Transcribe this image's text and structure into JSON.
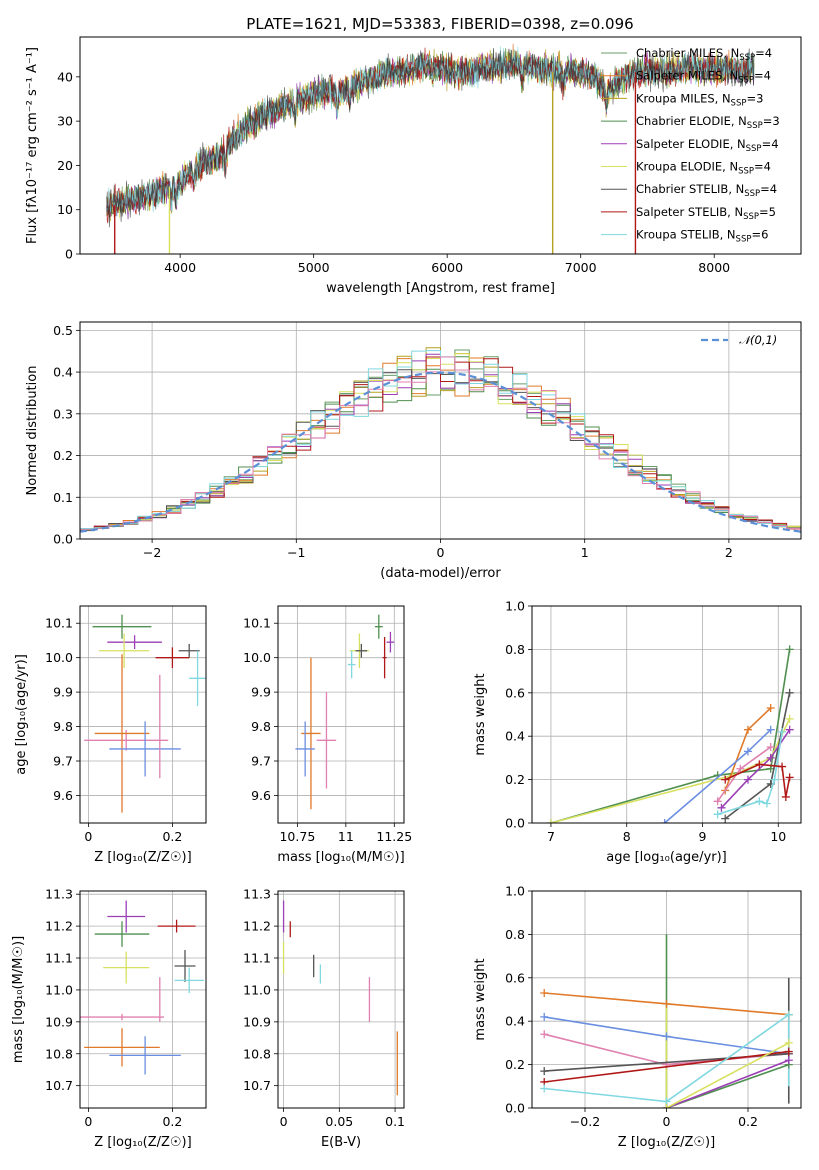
{
  "figure_title": "PLATE=1621, MJD=53383, FIBERID=0398, z=0.096",
  "colors": {
    "Chabrier MILES": "#6a9e6a",
    "Salpeter MILES": "#e07a2a",
    "Kroupa MILES": "#b5a020",
    "Chabrier ELODIE": "#4f8f4f",
    "Salpeter ELODIE": "#9b3fb5",
    "Kroupa ELODIE": "#d8e060",
    "Chabrier STELIB": "#555555",
    "Salpeter STELIB": "#b01818",
    "Kroupa STELIB": "#80d8e0",
    "pink": "#e080b0",
    "blue": "#6a8ee0",
    "orange": "#e07a2a",
    "gaussian": "#5b8fd6"
  },
  "chart_data": [
    {
      "id": "spectrum",
      "type": "line",
      "xlabel": "wavelength [Angstrom, rest frame]",
      "ylabel": "Flux [fλ10⁻¹⁷ erg cm⁻² s⁻¹ A⁻¹]",
      "xlim": [
        3250,
        8650
      ],
      "ylim": [
        0,
        49
      ],
      "xticks": [
        4000,
        5000,
        6000,
        7000,
        8000
      ],
      "yticks": [
        0,
        10,
        20,
        30,
        40
      ],
      "grid": false,
      "legend_position": "top-right",
      "legend": [
        {
          "name": "Chabrier MILES",
          "nssp": "4",
          "color": "#6a9e6a"
        },
        {
          "name": "Salpeter MILES",
          "nssp": "4",
          "color": "#e07a2a"
        },
        {
          "name": "Kroupa MILES",
          "nssp": "3",
          "color": "#b5a020"
        },
        {
          "name": "Chabrier ELODIE",
          "nssp": "3",
          "color": "#4f8f4f"
        },
        {
          "name": "Salpeter ELODIE",
          "nssp": "4",
          "color": "#9b3fb5"
        },
        {
          "name": "Kroupa ELODIE",
          "nssp": "4",
          "color": "#d8e060"
        },
        {
          "name": "Chabrier STELIB",
          "nssp": "4",
          "color": "#555555"
        },
        {
          "name": "Salpeter STELIB",
          "nssp": "5",
          "color": "#b01818"
        },
        {
          "name": "Kroupa STELIB",
          "nssp": "6",
          "color": "#80d8e0"
        }
      ],
      "continuum": [
        [
          3450,
          10.5
        ],
        [
          3600,
          12
        ],
        [
          3750,
          13
        ],
        [
          3900,
          15
        ],
        [
          4000,
          16
        ],
        [
          4100,
          19
        ],
        [
          4200,
          21
        ],
        [
          4300,
          22
        ],
        [
          4400,
          26
        ],
        [
          4500,
          29
        ],
        [
          4600,
          31
        ],
        [
          4700,
          32.5
        ],
        [
          4800,
          33.5
        ],
        [
          4900,
          35
        ],
        [
          5000,
          36
        ],
        [
          5100,
          37
        ],
        [
          5200,
          36.5
        ],
        [
          5300,
          38
        ],
        [
          5400,
          39.5
        ],
        [
          5500,
          40.5
        ],
        [
          5600,
          41
        ],
        [
          5700,
          41.5
        ],
        [
          5800,
          42.5
        ],
        [
          5900,
          43
        ],
        [
          6000,
          41.5
        ],
        [
          6100,
          41
        ],
        [
          6200,
          41.5
        ],
        [
          6300,
          42
        ],
        [
          6400,
          42.5
        ],
        [
          6500,
          43
        ],
        [
          6600,
          42.5
        ],
        [
          6700,
          42
        ],
        [
          6800,
          41
        ],
        [
          6900,
          41.5
        ],
        [
          7000,
          41
        ],
        [
          7100,
          40
        ],
        [
          7200,
          37
        ],
        [
          7300,
          39.5
        ],
        [
          7400,
          41
        ],
        [
          7500,
          41.5
        ],
        [
          7600,
          41
        ],
        [
          7700,
          41.5
        ],
        [
          7800,
          42
        ],
        [
          7900,
          42
        ],
        [
          8000,
          41.5
        ],
        [
          8100,
          41.8
        ],
        [
          8200,
          41.5
        ],
        [
          8300,
          42
        ]
      ],
      "drops": [
        [
          3510,
          0
        ],
        [
          3920,
          0
        ],
        [
          6790,
          0
        ],
        [
          7410,
          0
        ]
      ]
    },
    {
      "id": "residuals",
      "type": "histogram",
      "xlabel": "(data-model)/error",
      "ylabel": "Normed distribution",
      "xlim": [
        -2.5,
        2.5
      ],
      "ylim": [
        0,
        0.52
      ],
      "xticks": [
        -2,
        -1,
        0,
        1,
        2
      ],
      "yticks": [
        0.0,
        0.1,
        0.2,
        0.3,
        0.4,
        0.5
      ],
      "grid": true,
      "legend_label": "𝒩(0,1)",
      "legend_position": "top-right",
      "bin_width": 0.1,
      "bin_start": -2.5
    },
    {
      "id": "age_vs_Z",
      "type": "errorbar",
      "xlabel": "Z [log₁₀(Z/Z☉)]",
      "ylabel": "age [log₁₀(age/yr)]",
      "xlim": [
        -0.02,
        0.28
      ],
      "ylim": [
        9.52,
        10.15
      ],
      "xticks": [
        0.0,
        0.2
      ],
      "yticks": [
        9.6,
        9.7,
        9.8,
        9.9,
        10.0,
        10.1
      ],
      "points": [
        {
          "x": 0.08,
          "y": 10.09,
          "xerr": 0.07,
          "yerr": 0.035,
          "color": "#4f8f4f"
        },
        {
          "x": 0.11,
          "y": 10.045,
          "xerr": 0.065,
          "yerr": 0.02,
          "color": "#9b3fb5"
        },
        {
          "x": 0.085,
          "y": 10.02,
          "xerr": 0.06,
          "yerr": 0.05,
          "color": "#d8e060"
        },
        {
          "x": 0.24,
          "y": 10.02,
          "xerr": 0.025,
          "yerr": 0.02,
          "color": "#555555"
        },
        {
          "x": 0.2,
          "y": 10.0,
          "xerr": 0.04,
          "yerr": 0.03,
          "color": "#b01818"
        },
        {
          "x": 0.26,
          "y": 9.94,
          "xerr": 0.02,
          "yerr": 0.08,
          "color": "#80d8e0"
        },
        {
          "x": 0.09,
          "y": 9.76,
          "xerr": 0.1,
          "yerr": 0.03,
          "color": "#e080b0"
        },
        {
          "x": 0.08,
          "y": 9.78,
          "xerr": 0.065,
          "yerr": 0.23,
          "color": "#e07a2a"
        },
        {
          "x": 0.135,
          "y": 9.735,
          "xerr": 0.085,
          "yerr": 0.08,
          "color": "#6a8ee0"
        },
        {
          "x": 0.17,
          "y": 9.8,
          "xerr": 0.0,
          "yerr": 0.15,
          "color": "#e080b0"
        }
      ]
    },
    {
      "id": "age_vs_mass",
      "type": "errorbar",
      "xlabel": "mass [log₁₀(M/M☉)]",
      "ylabel": "",
      "xlim": [
        10.65,
        11.3
      ],
      "ylim": [
        9.52,
        10.15
      ],
      "xticks": [
        10.75,
        11.0,
        11.25
      ],
      "yticks": [
        9.6,
        9.7,
        9.8,
        9.9,
        10.0,
        10.1
      ],
      "points": [
        {
          "x": 11.17,
          "y": 10.09,
          "xerr": 0.02,
          "yerr": 0.035,
          "color": "#4f8f4f"
        },
        {
          "x": 11.23,
          "y": 10.045,
          "xerr": 0.02,
          "yerr": 0.03,
          "color": "#9b3fb5"
        },
        {
          "x": 11.07,
          "y": 10.02,
          "xerr": 0.05,
          "yerr": 0.05,
          "color": "#d8e060"
        },
        {
          "x": 11.08,
          "y": 10.02,
          "xerr": 0.03,
          "yerr": 0.02,
          "color": "#555555"
        },
        {
          "x": 11.2,
          "y": 10.0,
          "xerr": 0.01,
          "yerr": 0.06,
          "color": "#b01818"
        },
        {
          "x": 11.03,
          "y": 9.98,
          "xerr": 0.02,
          "yerr": 0.04,
          "color": "#80d8e0"
        },
        {
          "x": 10.9,
          "y": 9.76,
          "xerr": 0.05,
          "yerr": 0.14,
          "color": "#e080b0"
        },
        {
          "x": 10.82,
          "y": 9.78,
          "xerr": 0.05,
          "yerr": 0.22,
          "color": "#e07a2a"
        },
        {
          "x": 10.79,
          "y": 9.735,
          "xerr": 0.05,
          "yerr": 0.08,
          "color": "#6a8ee0"
        }
      ]
    },
    {
      "id": "weight_vs_age",
      "type": "line",
      "xlabel": "age  [log₁₀(age/yr)]",
      "ylabel": "mass weight",
      "xlim": [
        6.75,
        10.3
      ],
      "ylim": [
        0,
        1.0
      ],
      "xticks": [
        7,
        8,
        9,
        10
      ],
      "yticks": [
        0.0,
        0.2,
        0.4,
        0.6,
        0.8,
        1.0
      ],
      "series": [
        {
          "color": "#4f8f4f",
          "x": [
            7.0,
            9.2,
            9.9,
            10.15
          ],
          "y": [
            0.0,
            0.22,
            0.25,
            0.8
          ]
        },
        {
          "color": "#d8e060",
          "x": [
            7.0,
            9.4,
            9.9,
            10.15
          ],
          "y": [
            0.0,
            0.22,
            0.3,
            0.48
          ]
        },
        {
          "color": "#555555",
          "x": [
            9.3,
            9.9,
            10.15
          ],
          "y": [
            0.02,
            0.18,
            0.6
          ]
        },
        {
          "color": "#9b3fb5",
          "x": [
            9.25,
            9.6,
            9.9,
            10.15
          ],
          "y": [
            0.07,
            0.2,
            0.3,
            0.43
          ]
        },
        {
          "color": "#e07a2a",
          "x": [
            9.3,
            9.6,
            9.9
          ],
          "y": [
            0.15,
            0.43,
            0.53
          ]
        },
        {
          "color": "#6a8ee0",
          "x": [
            8.5,
            9.6,
            9.9
          ],
          "y": [
            0.0,
            0.33,
            0.43
          ]
        },
        {
          "color": "#e080b0",
          "x": [
            9.2,
            9.5,
            9.9
          ],
          "y": [
            0.1,
            0.25,
            0.35
          ]
        },
        {
          "color": "#80d8e0",
          "x": [
            9.2,
            9.75,
            9.85,
            9.95,
            10.05
          ],
          "y": [
            0.04,
            0.1,
            0.09,
            0.2,
            0.42
          ]
        },
        {
          "color": "#b01818",
          "x": [
            9.3,
            9.75,
            10.05,
            10.1,
            10.15
          ],
          "y": [
            0.2,
            0.27,
            0.26,
            0.12,
            0.21
          ]
        }
      ]
    },
    {
      "id": "mass_vs_Z",
      "type": "errorbar",
      "xlabel": "Z [log₁₀(Z/Z☉)]",
      "ylabel": "mass [log₁₀(M/M☉)]",
      "xlim": [
        -0.02,
        0.28
      ],
      "ylim": [
        10.63,
        11.31
      ],
      "xticks": [
        0.0,
        0.2
      ],
      "yticks": [
        10.7,
        10.8,
        10.9,
        11.0,
        11.1,
        11.2,
        11.3
      ],
      "points": [
        {
          "x": 0.09,
          "y": 11.23,
          "xerr": 0.045,
          "yerr": 0.05,
          "color": "#9b3fb5"
        },
        {
          "x": 0.21,
          "y": 11.2,
          "xerr": 0.045,
          "yerr": 0.02,
          "color": "#b01818"
        },
        {
          "x": 0.08,
          "y": 11.175,
          "xerr": 0.065,
          "yerr": 0.04,
          "color": "#4f8f4f"
        },
        {
          "x": 0.09,
          "y": 11.07,
          "xerr": 0.055,
          "yerr": 0.05,
          "color": "#d8e060"
        },
        {
          "x": 0.23,
          "y": 11.075,
          "xerr": 0.025,
          "yerr": 0.05,
          "color": "#555555"
        },
        {
          "x": 0.24,
          "y": 11.03,
          "xerr": 0.035,
          "yerr": 0.04,
          "color": "#80d8e0"
        },
        {
          "x": 0.17,
          "y": 10.97,
          "xerr": 0.0,
          "yerr": 0.07,
          "color": "#e080b0"
        },
        {
          "x": 0.08,
          "y": 10.915,
          "xerr": 0.1,
          "yerr": 0.01,
          "color": "#e080b0"
        },
        {
          "x": 0.08,
          "y": 10.82,
          "xerr": 0.09,
          "yerr": 0.06,
          "color": "#e07a2a"
        },
        {
          "x": 0.135,
          "y": 10.795,
          "xerr": 0.085,
          "yerr": 0.06,
          "color": "#6a8ee0"
        }
      ]
    },
    {
      "id": "mass_vs_EBV",
      "type": "errorbar",
      "xlabel": "E(B-V)",
      "ylabel": "",
      "xlim": [
        -0.005,
        0.108
      ],
      "ylim": [
        10.63,
        11.31
      ],
      "xticks": [
        0.0,
        0.05,
        0.1
      ],
      "yticks": [
        10.7,
        10.8,
        10.9,
        11.0,
        11.1,
        11.2,
        11.3
      ],
      "points": [
        {
          "x": 0.0,
          "y": 11.23,
          "xerr": 0.0,
          "yerr": 0.05,
          "color": "#9b3fb5"
        },
        {
          "x": 0.006,
          "y": 11.19,
          "xerr": 0.0,
          "yerr": 0.025,
          "color": "#b01818"
        },
        {
          "x": 0.0,
          "y": 11.1,
          "xerr": 0.0,
          "yerr": 0.05,
          "color": "#d8e060"
        },
        {
          "x": 0.027,
          "y": 11.075,
          "xerr": 0.0,
          "yerr": 0.035,
          "color": "#555555"
        },
        {
          "x": 0.033,
          "y": 11.05,
          "xerr": 0.0,
          "yerr": 0.03,
          "color": "#80d8e0"
        },
        {
          "x": 0.077,
          "y": 10.97,
          "xerr": 0.0,
          "yerr": 0.07,
          "color": "#e080b0"
        },
        {
          "x": 0.102,
          "y": 10.77,
          "xerr": 0.0,
          "yerr": 0.1,
          "color": "#e07a2a"
        }
      ]
    },
    {
      "id": "weight_vs_Z",
      "type": "line",
      "xlabel": "Z [log₁₀(Z/Z☉)]",
      "ylabel": "mass weight",
      "xlim": [
        -0.33,
        0.33
      ],
      "ylim": [
        0,
        1.0
      ],
      "xticks": [
        -0.2,
        0.0,
        0.2
      ],
      "yticks": [
        0.0,
        0.2,
        0.4,
        0.6,
        0.8,
        1.0
      ],
      "series": [
        {
          "color": "#e07a2a",
          "x": [
            -0.3,
            0.0,
            0.3
          ],
          "y": [
            0.53,
            0.48,
            0.43
          ]
        },
        {
          "color": "#6a8ee0",
          "x": [
            -0.3,
            0.0,
            0.3
          ],
          "y": [
            0.42,
            0.33,
            0.25
          ]
        },
        {
          "color": "#e080b0",
          "x": [
            -0.3,
            0.0,
            0.3
          ],
          "y": [
            0.34,
            0.2,
            0.25
          ]
        },
        {
          "color": "#555555",
          "x": [
            -0.3,
            0.3
          ],
          "y": [
            0.17,
            0.25
          ]
        },
        {
          "color": "#b01818",
          "x": [
            -0.3,
            0.3
          ],
          "y": [
            0.12,
            0.26
          ]
        },
        {
          "color": "#80d8e0",
          "x": [
            -0.3,
            0.0,
            0.3
          ],
          "y": [
            0.09,
            0.03,
            0.43
          ]
        },
        {
          "color": "#4f8f4f",
          "x": [
            0.0,
            0.3
          ],
          "y": [
            0.0,
            0.2
          ]
        },
        {
          "color": "#9b3fb5",
          "x": [
            0.0,
            0.3
          ],
          "y": [
            0.0,
            0.22
          ]
        },
        {
          "color": "#d8e060",
          "x": [
            0.0,
            0.3
          ],
          "y": [
            0.0,
            0.3
          ]
        }
      ],
      "vlines": [
        {
          "color": "#4f8f4f",
          "x": 0.0,
          "y": [
            0.0,
            0.8
          ]
        },
        {
          "color": "#d8e060",
          "x": 0.0,
          "y": [
            0.0,
            0.48
          ]
        },
        {
          "color": "#555555",
          "x": 0.3,
          "y": [
            0.02,
            0.6
          ]
        },
        {
          "color": "#80d8e0",
          "x": 0.3,
          "y": [
            0.1,
            0.43
          ]
        }
      ]
    }
  ]
}
